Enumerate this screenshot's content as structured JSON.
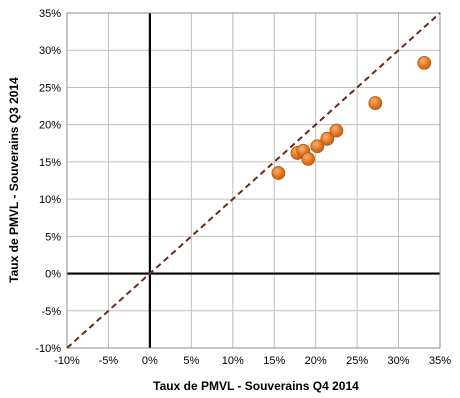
{
  "chart_data": {
    "type": "scatter",
    "xlabel": "Taux de PMVL -  Souverains Q4 2014",
    "ylabel": "Taux de PMVL -  Souverains Q3 2014",
    "xlim": [
      -10,
      35
    ],
    "ylim": [
      -10,
      35
    ],
    "x_ticks": [
      "-10%",
      "-5%",
      "0%",
      "5%",
      "10%",
      "15%",
      "20%",
      "25%",
      "30%",
      "35%"
    ],
    "y_ticks": [
      "-10%",
      "-5%",
      "0%",
      "5%",
      "10%",
      "15%",
      "20%",
      "25%",
      "30%",
      "35%"
    ],
    "grid": true,
    "reference_line": "y = x",
    "colors": {
      "marker": "#E87722",
      "marker_edge": "#B35A12",
      "reference_line": "#6B2A1E",
      "grid": "#BFBFBF",
      "zero_axes": "#000000"
    },
    "points": [
      {
        "x": 15.5,
        "y": 13.5
      },
      {
        "x": 17.8,
        "y": 16.2
      },
      {
        "x": 18.5,
        "y": 16.5
      },
      {
        "x": 19.1,
        "y": 15.4
      },
      {
        "x": 20.2,
        "y": 17.1
      },
      {
        "x": 21.4,
        "y": 18.1
      },
      {
        "x": 22.5,
        "y": 19.2
      },
      {
        "x": 27.2,
        "y": 22.9
      },
      {
        "x": 33.1,
        "y": 28.3
      }
    ]
  }
}
